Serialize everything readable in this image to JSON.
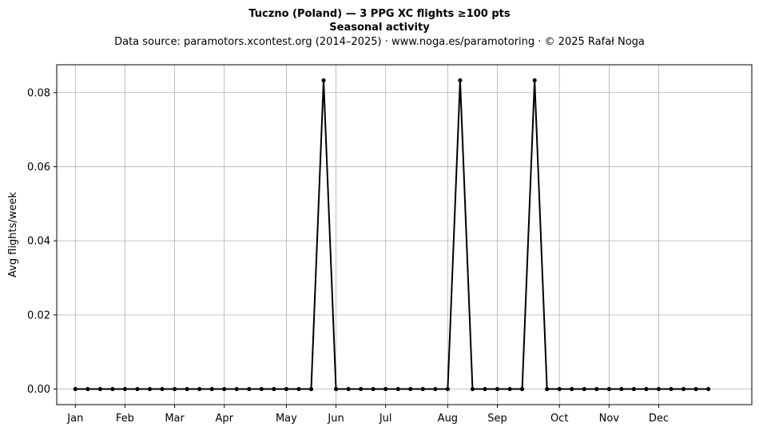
{
  "chart_data": {
    "type": "line",
    "title": "Tuczno (Poland)  —  3 PPG XC flights ≥100 pts",
    "subtitle": "Seasonal activity",
    "source_note": "Data source: paramotors.xcontest.org (2014–2025)  ·  www.noga.es/paramotoring  ·  © 2025 Rafał Noga",
    "xlabel": "",
    "ylabel": "Avg flights/week",
    "x_unit": "week of year",
    "xlim": [
      -1.5,
      54.5
    ],
    "ylim": [
      -0.0042,
      0.0875
    ],
    "yticks": [
      0.0,
      0.02,
      0.04,
      0.06,
      0.08
    ],
    "ytick_labels": [
      "0.00",
      "0.02",
      "0.04",
      "0.06",
      "0.08"
    ],
    "xticks": [
      {
        "week": 0,
        "label": "Jan"
      },
      {
        "week": 4,
        "label": "Feb"
      },
      {
        "week": 8,
        "label": "Mar"
      },
      {
        "week": 12,
        "label": "Apr"
      },
      {
        "week": 17,
        "label": "May"
      },
      {
        "week": 21,
        "label": "Jun"
      },
      {
        "week": 25,
        "label": "Jul"
      },
      {
        "week": 30,
        "label": "Aug"
      },
      {
        "week": 34,
        "label": "Sep"
      },
      {
        "week": 39,
        "label": "Oct"
      },
      {
        "week": 43,
        "label": "Nov"
      },
      {
        "week": 47,
        "label": "Dec"
      }
    ],
    "grid": true,
    "series": [
      {
        "color": "#000000",
        "x": [
          0,
          1,
          2,
          3,
          4,
          5,
          6,
          7,
          8,
          9,
          10,
          11,
          12,
          13,
          14,
          15,
          16,
          17,
          18,
          19,
          20,
          21,
          22,
          23,
          24,
          25,
          26,
          27,
          28,
          29,
          30,
          31,
          32,
          33,
          34,
          35,
          36,
          37,
          38,
          39,
          40,
          41,
          42,
          43,
          44,
          45,
          46,
          47,
          48,
          49,
          50,
          51
        ],
        "values": [
          0,
          0,
          0,
          0,
          0,
          0,
          0,
          0,
          0,
          0,
          0,
          0,
          0,
          0,
          0,
          0,
          0,
          0,
          0,
          0,
          0.0833,
          0,
          0,
          0,
          0,
          0,
          0,
          0,
          0,
          0,
          0,
          0.0833,
          0,
          0,
          0,
          0,
          0,
          0.0833,
          0,
          0,
          0,
          0,
          0,
          0,
          0,
          0,
          0,
          0,
          0,
          0,
          0,
          0
        ]
      }
    ]
  }
}
